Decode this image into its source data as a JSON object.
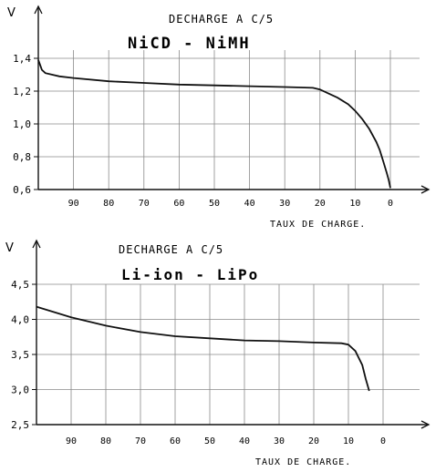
{
  "chart_data": [
    {
      "type": "line",
      "title": "DECHARGE A C/5",
      "subtitle": "NiCD - NiMH",
      "ylabel": "V",
      "xlabel": "TAUX DE CHARGE.",
      "xlim": [
        100,
        0
      ],
      "ylim": [
        0.6,
        1.4
      ],
      "x_ticks": [
        "90",
        "80",
        "70",
        "60",
        "50",
        "40",
        "30",
        "20",
        "10",
        "0"
      ],
      "y_ticks": [
        "1,4",
        "1,2",
        "1,0",
        "0,8",
        "0,6"
      ],
      "grid": true,
      "series": [
        {
          "x": [
            100,
            99,
            98,
            96,
            94,
            90,
            80,
            70,
            60,
            50,
            40,
            30,
            22,
            20,
            18,
            15,
            12,
            10,
            8,
            6,
            4,
            3,
            2,
            1,
            0.5,
            0
          ],
          "y": [
            1.39,
            1.33,
            1.31,
            1.3,
            1.29,
            1.28,
            1.26,
            1.25,
            1.24,
            1.235,
            1.23,
            1.225,
            1.22,
            1.21,
            1.19,
            1.16,
            1.12,
            1.08,
            1.03,
            0.97,
            0.89,
            0.84,
            0.77,
            0.7,
            0.66,
            0.61
          ]
        }
      ]
    },
    {
      "type": "line",
      "title": "DECHARGE A C/5",
      "subtitle": "Li-ion - LiPo",
      "ylabel": "V",
      "xlabel": "TAUX DE CHARGE.",
      "xlim": [
        100,
        0
      ],
      "ylim": [
        2.5,
        4.5
      ],
      "x_ticks": [
        "90",
        "80",
        "70",
        "60",
        "50",
        "40",
        "30",
        "20",
        "10",
        "0"
      ],
      "y_ticks": [
        "4,5",
        "4,0",
        "3,5",
        "3,0",
        "2,5"
      ],
      "grid": true,
      "series": [
        {
          "x": [
            100,
            90,
            80,
            70,
            60,
            50,
            40,
            30,
            20,
            12,
            10,
            8,
            6,
            5,
            4
          ],
          "y": [
            4.18,
            4.03,
            3.91,
            3.82,
            3.76,
            3.73,
            3.7,
            3.69,
            3.67,
            3.66,
            3.64,
            3.55,
            3.35,
            3.15,
            2.98
          ]
        }
      ]
    }
  ]
}
